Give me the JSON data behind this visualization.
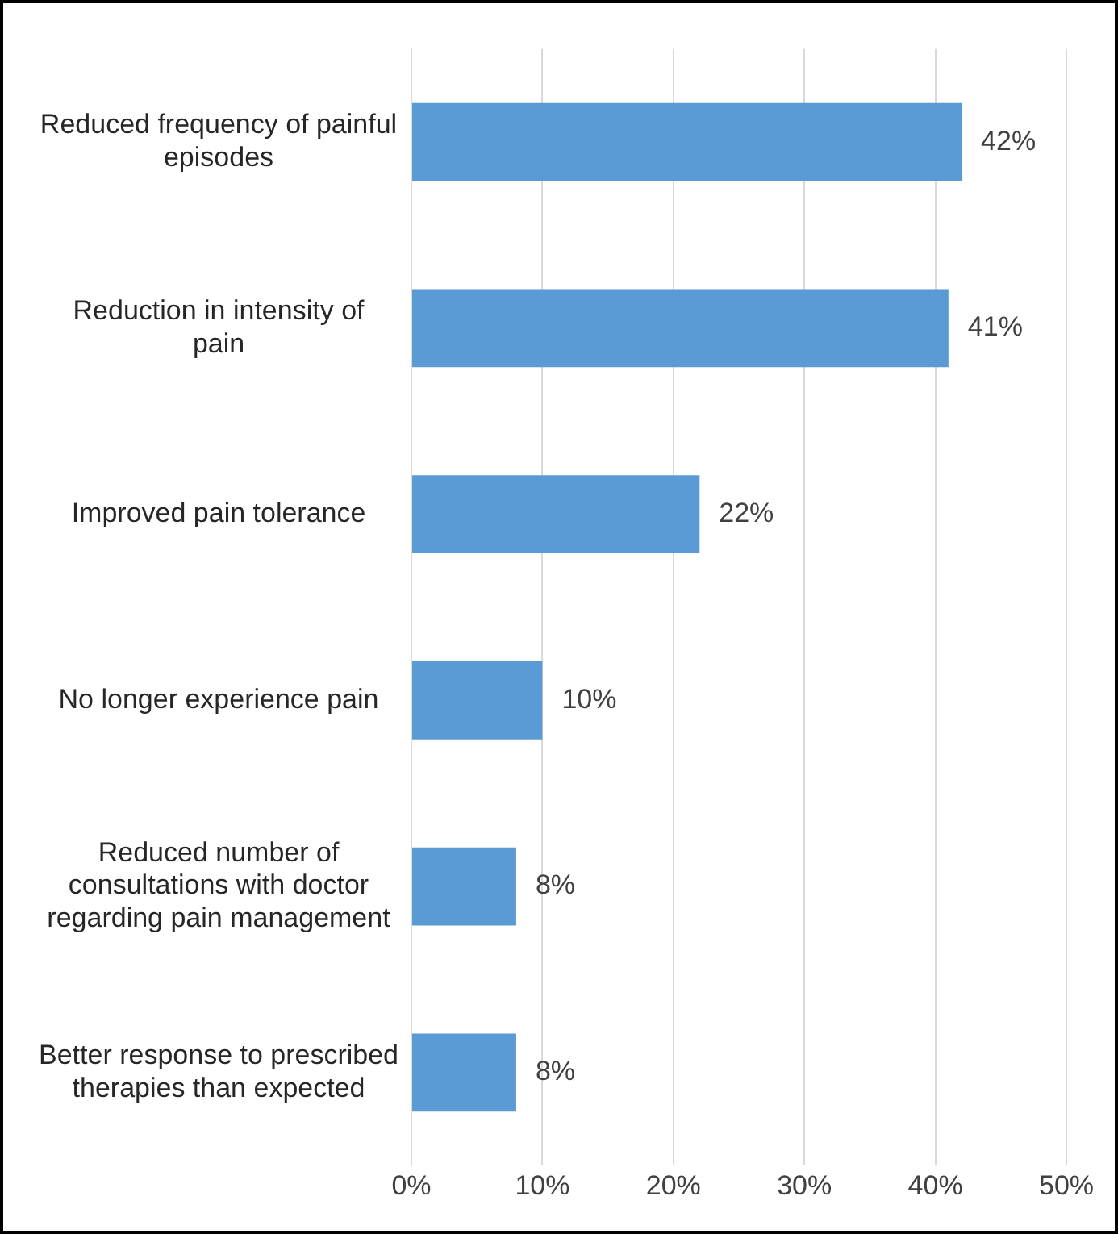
{
  "chart_data": {
    "type": "bar",
    "orientation": "horizontal",
    "categories": [
      "Reduced frequency of painful episodes",
      "Reduction in intensity of pain",
      "Improved pain tolerance",
      "No longer experience pain",
      "Reduced number of consultations with doctor regarding pain management",
      "Better response to prescribed therapies than expected"
    ],
    "values": [
      42,
      41,
      22,
      10,
      8,
      8
    ],
    "value_labels": [
      "42%",
      "41%",
      "22%",
      "10%",
      "8%",
      "8%"
    ],
    "color": "#5b9bd5",
    "xlim": [
      0,
      50
    ],
    "xticks": [
      {
        "value": 0,
        "label": "0%"
      },
      {
        "value": 10,
        "label": "10%"
      },
      {
        "value": 20,
        "label": "20%"
      },
      {
        "value": 30,
        "label": "30%"
      },
      {
        "value": 40,
        "label": "40%"
      },
      {
        "value": 50,
        "label": "50%"
      }
    ],
    "grid": "x",
    "legend": false
  }
}
